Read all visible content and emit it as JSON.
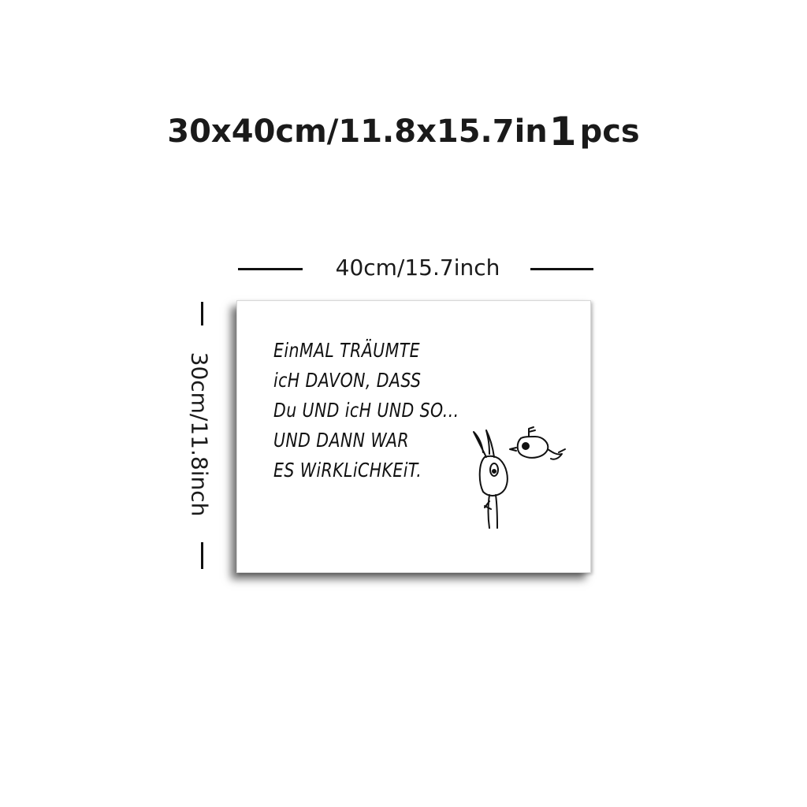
{
  "header": {
    "size_text": "30x40cm/11.8x15.7in",
    "quantity": "1",
    "unit": "pcs"
  },
  "dimensions": {
    "width_label": "40cm/15.7inch",
    "height_label": "30cm/11.8inch"
  },
  "canvas": {
    "quote_lines": [
      "EinMAL TRÄUMTE",
      "icH DAVON, DASS",
      "Du UND icH UND SO...",
      "UND DANN WAR",
      "ES WiRKLiCHKEiT."
    ],
    "illustration": "bunny-and-bird-doodle"
  }
}
